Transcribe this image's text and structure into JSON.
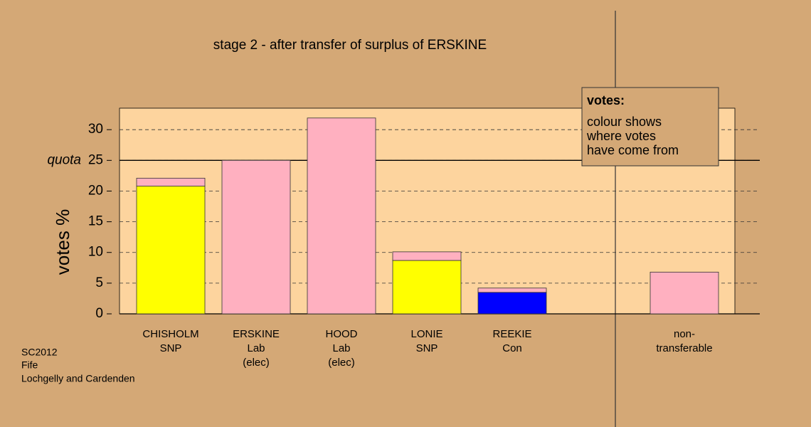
{
  "chart_data": {
    "type": "bar",
    "stacked": true,
    "title": "stage 2 - after transfer of surplus of ERSKINE",
    "y_label": "votes %",
    "categories": [
      [
        "CHISHOLM",
        "SNP"
      ],
      [
        "ERSKINE",
        "Lab",
        "(elec)"
      ],
      [
        "HOOD",
        "Lab",
        "(elec)"
      ],
      [
        "LONIE",
        "SNP"
      ],
      [
        "REEKIE",
        "Con"
      ],
      [
        "non-",
        "transferable"
      ]
    ],
    "series": [
      {
        "color": "#ffff00",
        "values": [
          20.8,
          null,
          null,
          8.7,
          null,
          null
        ]
      },
      {
        "color": "#0000ff",
        "values": [
          null,
          null,
          null,
          null,
          3.5,
          null
        ]
      },
      {
        "color": "#ffb0c0",
        "values": [
          1.3,
          25,
          31.9,
          1.4,
          0.7,
          6.8
        ]
      }
    ],
    "ylim": [
      0,
      33.5
    ],
    "yticks": [
      0,
      5,
      10,
      15,
      20,
      25,
      30
    ],
    "grid": true,
    "quota": {
      "value": 25,
      "label": "quota"
    },
    "legend_box": {
      "title": "votes:",
      "lines": [
        "colour shows",
        "where votes",
        "have come from"
      ]
    },
    "footnote": [
      "SC2012",
      "Fife",
      "Lochgelly and Cardenden"
    ]
  }
}
